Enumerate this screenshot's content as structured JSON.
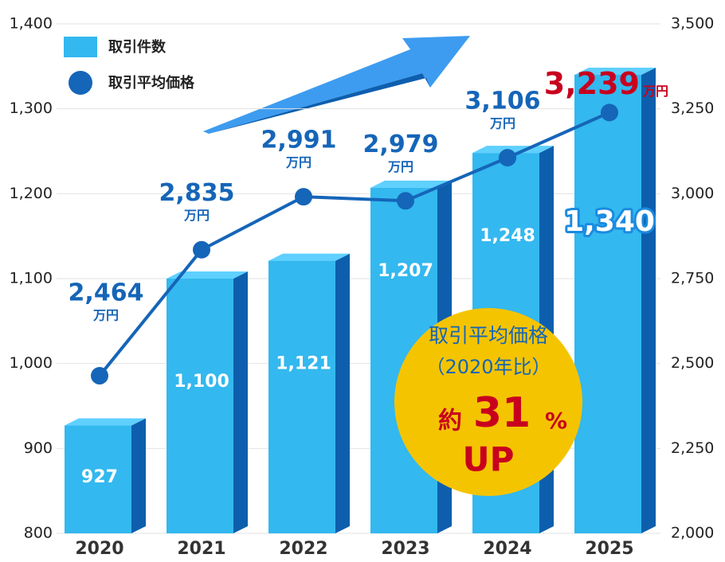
{
  "chart_data": {
    "type": "bar-line",
    "categories": [
      "2020",
      "2021",
      "2022",
      "2023",
      "2024",
      "2025"
    ],
    "series": [
      {
        "name": "取引件数",
        "color": "#33b8ef",
        "values": [
          927,
          1100,
          1121,
          1207,
          1248,
          1340
        ],
        "value_labels": [
          "927",
          "1,100",
          "1,121",
          "1,207",
          "1,248",
          "1,340"
        ]
      },
      {
        "name": "取引平均価格",
        "color": "#1565b8",
        "axis": "y2",
        "values": [
          2464,
          2835,
          2991,
          2979,
          3106,
          3239
        ],
        "value_labels": [
          "2,464",
          "2,835",
          "2,991",
          "2,979",
          "3,106",
          "3,239"
        ],
        "unit": "万円",
        "highlight_color": "#c8001e"
      }
    ],
    "ylim": [
      800,
      1400
    ],
    "yticks": [
      800,
      900,
      {
        "value": 1000,
        "label": "1,000"
      },
      {
        "value": 1100,
        "label": "1,100"
      },
      {
        "value": 1200,
        "label": "1,200"
      },
      {
        "value": 1300,
        "label": "1,300"
      },
      {
        "value": 1400,
        "label": "1,400"
      }
    ],
    "y2lim": [
      2000,
      3500
    ],
    "y2ticks": [
      {
        "value": 2000,
        "label": "2,000"
      },
      {
        "value": 2250,
        "label": "2,250"
      },
      {
        "value": 2500,
        "label": "2,500"
      },
      {
        "value": 2750,
        "label": "2,750"
      },
      {
        "value": 3000,
        "label": "3,000"
      },
      {
        "value": 3250,
        "label": "3,250"
      },
      {
        "value": 3500,
        "label": "3,500"
      }
    ],
    "grid": true,
    "legend": "top-left",
    "callout": {
      "title": "取引平均価格",
      "subtitle": "（2020年比）",
      "prefix": "約",
      "value": 31,
      "unit": "%",
      "suffix": "UP"
    }
  }
}
